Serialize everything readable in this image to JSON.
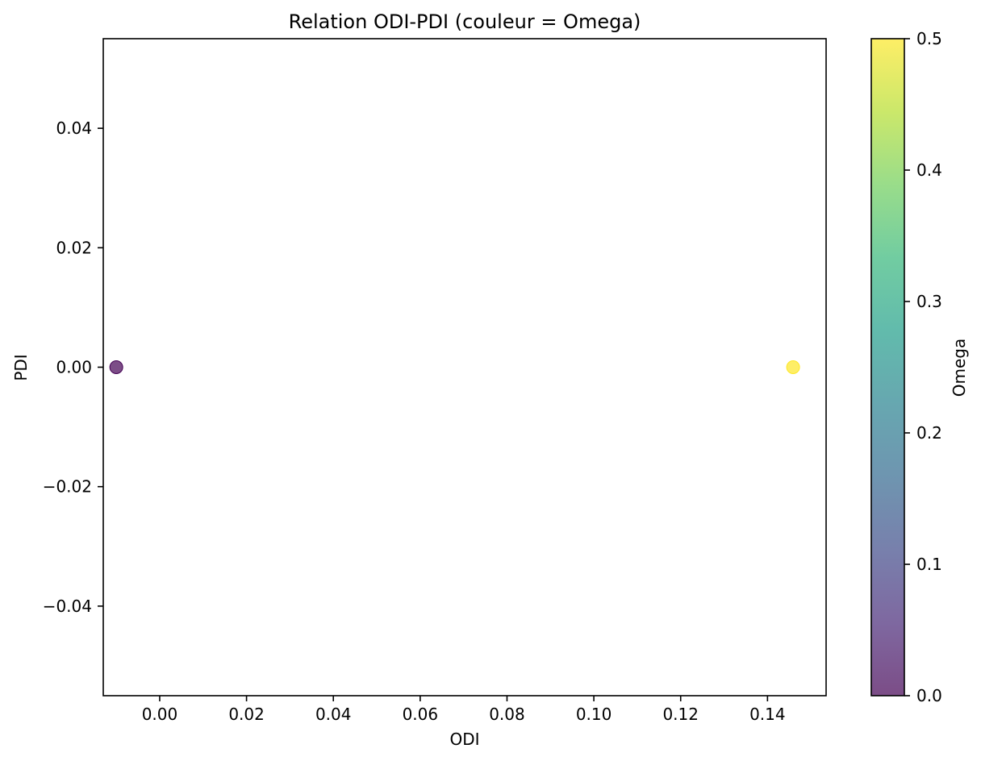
{
  "chart_data": {
    "type": "scatter",
    "title": "Relation ODI-PDI (couleur = Omega)",
    "xlabel": "ODI",
    "ylabel": "PDI",
    "xlim": [
      -0.013,
      0.1535
    ],
    "ylim": [
      -0.055,
      0.055
    ],
    "xticks": [
      0.0,
      0.02,
      0.04,
      0.06,
      0.08,
      0.1,
      0.12,
      0.14
    ],
    "xtick_labels": [
      "0.00",
      "0.02",
      "0.04",
      "0.06",
      "0.08",
      "0.10",
      "0.12",
      "0.14"
    ],
    "yticks": [
      -0.04,
      -0.02,
      0.0,
      0.02,
      0.04
    ],
    "ytick_labels": [
      "−0.04",
      "−0.02",
      "0.00",
      "0.02",
      "0.04"
    ],
    "grid": false,
    "points": [
      {
        "x": -0.01,
        "y": 0.0,
        "omega": 0.0
      },
      {
        "x": 0.1459,
        "y": 0.0,
        "omega": 0.5
      }
    ],
    "colorbar": {
      "label": "Omega",
      "colormap": "viridis",
      "alpha": 0.7,
      "range": [
        0.0,
        0.5
      ],
      "ticks": [
        0.0,
        0.1,
        0.2,
        0.3,
        0.4,
        0.5
      ],
      "tick_labels": [
        "0.0",
        "0.1",
        "0.2",
        "0.3",
        "0.4",
        "0.5"
      ]
    },
    "colors": {
      "viridis_stops": [
        "#440154",
        "#482878",
        "#3e4a89",
        "#31688e",
        "#26828e",
        "#1f9e89",
        "#35b779",
        "#6ece58",
        "#b5de2b",
        "#fde725"
      ]
    }
  }
}
